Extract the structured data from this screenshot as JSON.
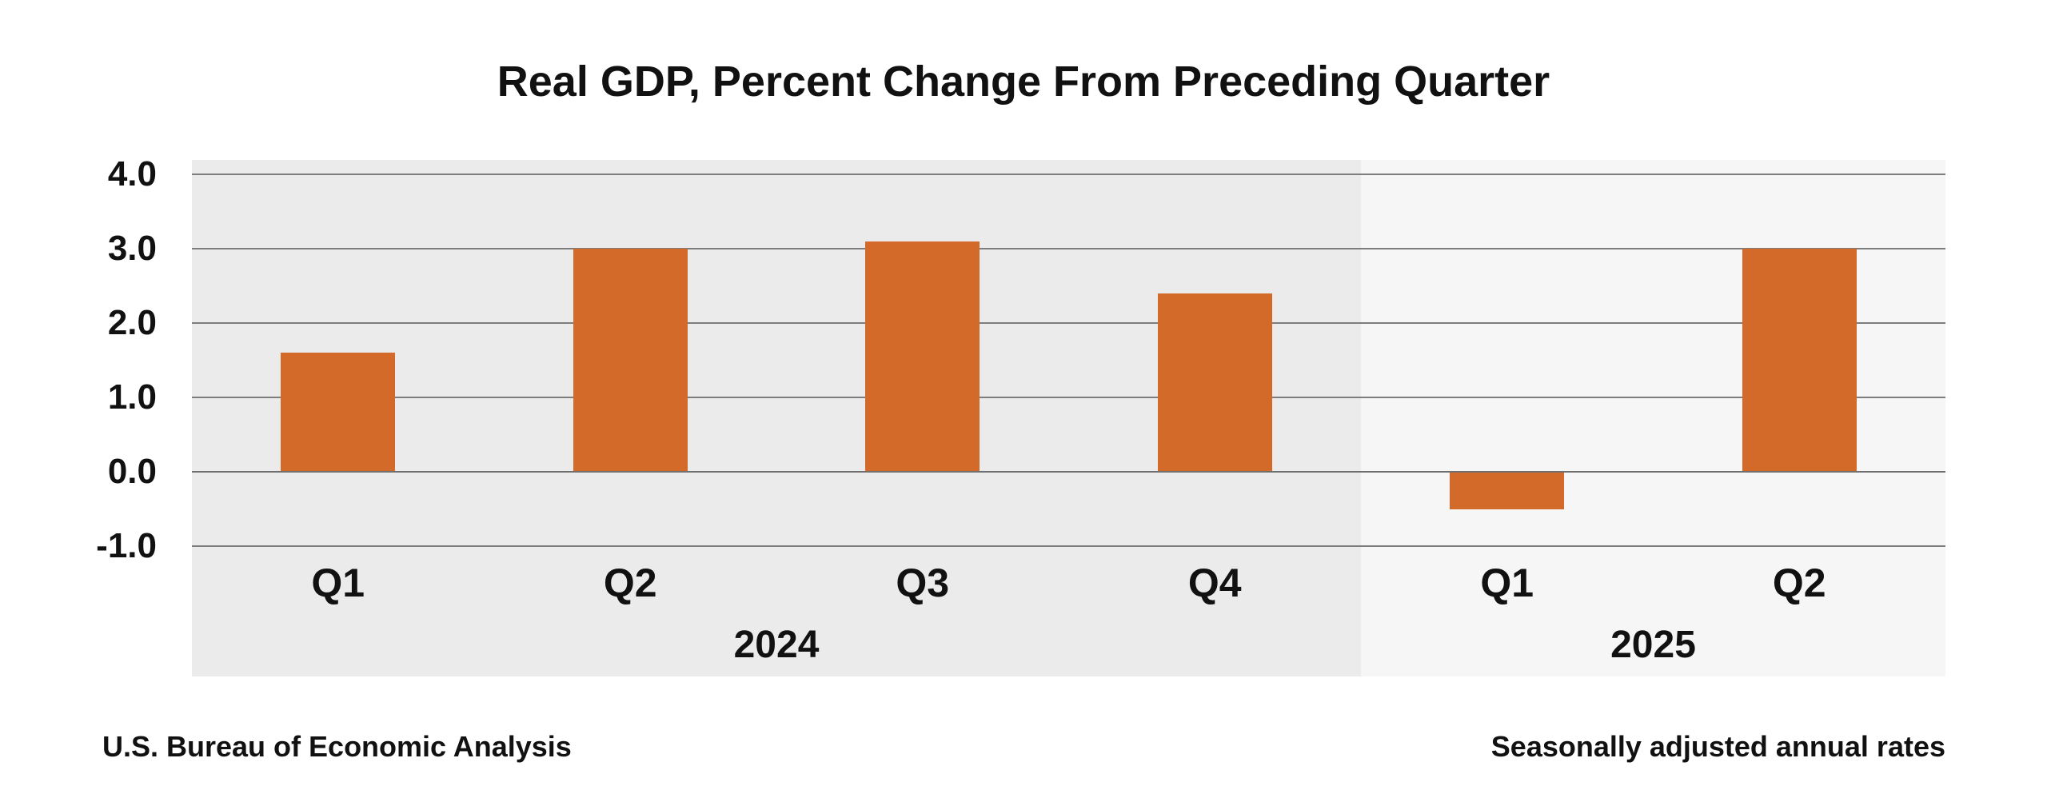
{
  "title": "Real GDP, Percent Change From Preceding Quarter",
  "footer": {
    "left": "U.S. Bureau of Economic Analysis",
    "right": "Seasonally adjusted annual rates"
  },
  "chart_data": {
    "type": "bar",
    "title": "Real GDP, Percent Change From Preceding Quarter",
    "categories": [
      "Q1",
      "Q2",
      "Q3",
      "Q4",
      "Q1",
      "Q2"
    ],
    "groups": [
      {
        "year": "2024",
        "quarters": [
          "Q1",
          "Q2",
          "Q3",
          "Q4"
        ],
        "values": [
          1.6,
          3.0,
          3.1,
          2.4
        ]
      },
      {
        "year": "2025",
        "quarters": [
          "Q1",
          "Q2"
        ],
        "values": [
          -0.5,
          3.0
        ]
      }
    ],
    "values": [
      1.6,
      3.0,
      3.1,
      2.4,
      -0.5,
      3.0
    ],
    "unit": "percent",
    "y_ticks": [
      {
        "label": "4.0",
        "value": 4.0
      },
      {
        "label": "3.0",
        "value": 3.0
      },
      {
        "label": "2.0",
        "value": 2.0
      },
      {
        "label": "1.0",
        "value": 1.0
      },
      {
        "label": "0.0",
        "value": 0.0
      },
      {
        "label": "-1.0",
        "value": -1.0
      }
    ],
    "ylim": [
      -1.0,
      4.0
    ],
    "grid": true,
    "legend_position": "none",
    "bar_color": "#d46a29",
    "panel_colors": [
      "#ebebeb",
      "#f6f6f6"
    ],
    "gridline_color": "#7d7d7d",
    "source_note": "U.S. Bureau of Economic Analysis",
    "adjustment_note": "Seasonally adjusted annual rates"
  }
}
